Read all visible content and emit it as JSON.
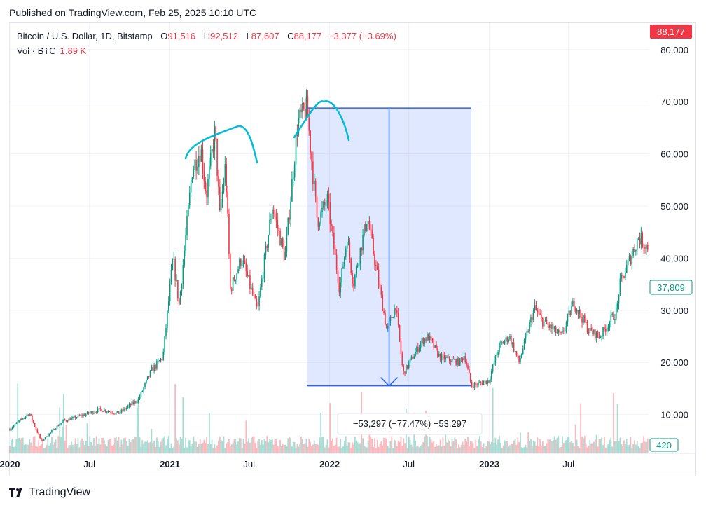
{
  "header": {
    "published": "Published on TradingView.com, Feb 25, 2025 10:10 UTC"
  },
  "legend": {
    "symbol": "Bitcoin / U.S. Dollar, 1D, Bitstamp",
    "o_label": "O",
    "o": "91,516",
    "h_label": "H",
    "h": "92,512",
    "l_label": "L",
    "l": "87,607",
    "c_label": "C",
    "c": "88,177",
    "change": "−3,377 (−3.69%)"
  },
  "volume": {
    "label": "Vol · BTC",
    "value": "1.89 K"
  },
  "price_badges": {
    "last": {
      "text": "88,177",
      "color": "#f23645"
    },
    "crosshair": {
      "text": "37,809",
      "color": "#089981"
    },
    "volume": {
      "text": "420",
      "color": "#089981"
    }
  },
  "measure": {
    "label": "−53,297 (−77.47%) −53,297"
  },
  "footer": {
    "brand": "TradingView"
  },
  "colors": {
    "up": "#089981",
    "down": "#f23645",
    "measure": "#2962ff",
    "drawing": "#00bcd4"
  },
  "chart_data": {
    "type": "candlestick",
    "symbol": "Bitcoin / U.S. Dollar",
    "interval": "1D",
    "x_tick_labels": [
      "2020",
      "Jul",
      "2021",
      "Jul",
      "2022",
      "Jul",
      "2023",
      "Jul"
    ],
    "x_tick_dates": [
      "2020-01-01",
      "2020-07-01",
      "2021-01-01",
      "2021-07-01",
      "2022-01-01",
      "2022-07-01",
      "2023-01-01",
      "2023-07-01"
    ],
    "y_ticks": [
      10000,
      20000,
      30000,
      40000,
      50000,
      60000,
      70000,
      80000
    ],
    "y_tick_labels": [
      "10,000",
      "20,000",
      "30,000",
      "40,000",
      "50,000",
      "60,000",
      "70,000",
      "80,000"
    ],
    "ylim": [
      6000,
      87000
    ],
    "x_range": [
      "2020-01-01",
      "2023-12-31"
    ],
    "grid": true,
    "price_path": [
      [
        "2020-01-01",
        7200
      ],
      [
        "2020-02-14",
        10300
      ],
      [
        "2020-03-13",
        4900
      ],
      [
        "2020-04-30",
        8700
      ],
      [
        "2020-06-01",
        9500
      ],
      [
        "2020-07-27",
        11000
      ],
      [
        "2020-09-05",
        10200
      ],
      [
        "2020-10-21",
        12900
      ],
      [
        "2020-11-20",
        18500
      ],
      [
        "2020-12-16",
        21000
      ],
      [
        "2021-01-08",
        40000
      ],
      [
        "2021-01-22",
        31000
      ],
      [
        "2021-02-21",
        57000
      ],
      [
        "2021-03-13",
        61000
      ],
      [
        "2021-03-25",
        52000
      ],
      [
        "2021-04-14",
        64500
      ],
      [
        "2021-04-25",
        48000
      ],
      [
        "2021-05-08",
        58000
      ],
      [
        "2021-05-19",
        34000
      ],
      [
        "2021-06-14",
        40000
      ],
      [
        "2021-07-20",
        29800
      ],
      [
        "2021-08-23",
        50000
      ],
      [
        "2021-09-21",
        40000
      ],
      [
        "2021-10-20",
        66000
      ],
      [
        "2021-11-10",
        68800
      ],
      [
        "2021-12-04",
        47000
      ],
      [
        "2021-12-27",
        51000
      ],
      [
        "2022-01-24",
        34000
      ],
      [
        "2022-02-10",
        44000
      ],
      [
        "2022-02-24",
        35000
      ],
      [
        "2022-03-28",
        48000
      ],
      [
        "2022-05-12",
        26000
      ],
      [
        "2022-06-01",
        31000
      ],
      [
        "2022-06-18",
        17800
      ],
      [
        "2022-07-30",
        24000
      ],
      [
        "2022-08-14",
        25000
      ],
      [
        "2022-09-10",
        21000
      ],
      [
        "2022-10-25",
        20000
      ],
      [
        "2022-11-05",
        21500
      ],
      [
        "2022-11-21",
        15500
      ],
      [
        "2022-12-31",
        16500
      ],
      [
        "2023-01-23",
        23000
      ],
      [
        "2023-02-16",
        25000
      ],
      [
        "2023-03-10",
        20000
      ],
      [
        "2023-04-14",
        30500
      ],
      [
        "2023-05-01",
        28000
      ],
      [
        "2023-06-15",
        25000
      ],
      [
        "2023-07-13",
        31500
      ],
      [
        "2023-08-17",
        26000
      ],
      [
        "2023-09-11",
        25000
      ],
      [
        "2023-10-20",
        30000
      ],
      [
        "2023-10-25",
        34500
      ],
      [
        "2023-12-08",
        44000
      ],
      [
        "2023-12-31",
        42000
      ]
    ],
    "measure_range": {
      "from": "2021-11-10",
      "to": "2022-11-21",
      "high": 68800,
      "low": 15500,
      "change": -53297,
      "change_pct": -77.47
    }
  }
}
